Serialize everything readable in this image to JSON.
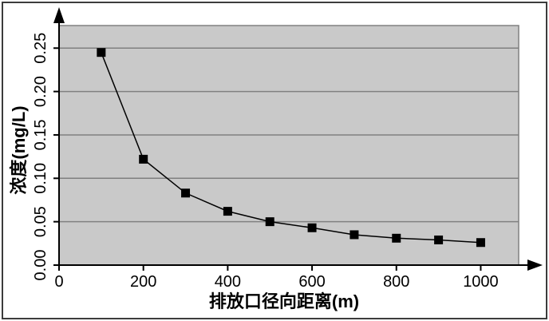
{
  "figure": {
    "type_label": "line-chart",
    "background": "#ffffff"
  },
  "chart_data": {
    "type": "line",
    "title": "",
    "xlabel": "排放口径向距离(m)",
    "ylabel": "浓度(mg/L)",
    "x": [
      100,
      200,
      300,
      400,
      500,
      600,
      700,
      800,
      900,
      1000
    ],
    "y": [
      0.245,
      0.122,
      0.083,
      0.062,
      0.05,
      0.043,
      0.035,
      0.031,
      0.029,
      0.026
    ],
    "series_name": "浓度",
    "x_tick_values": [
      0,
      200,
      400,
      600,
      800,
      1000
    ],
    "x_tick_labels": [
      "0",
      "200",
      "400",
      "600",
      "800",
      "1000"
    ],
    "y_tick_values": [
      0.0,
      0.05,
      0.1,
      0.15,
      0.2,
      0.25
    ],
    "y_tick_labels": [
      "0.00",
      "0.05",
      "0.10",
      "0.15",
      "0.20",
      "0.25"
    ],
    "xlim": [
      0,
      1090
    ],
    "ylim": [
      0,
      0.276
    ],
    "grid": "horizontal",
    "legend": "none",
    "marker": "square",
    "marker_size": 11,
    "axis_arrows": true,
    "colors": {
      "plot_background": "#c9c9c9",
      "gridline": "#808080",
      "plot_border": "#808080",
      "line": "#000000",
      "marker": "#000000",
      "axis": "#000000",
      "text": "#000000",
      "frame": "#3c3c3c"
    }
  }
}
